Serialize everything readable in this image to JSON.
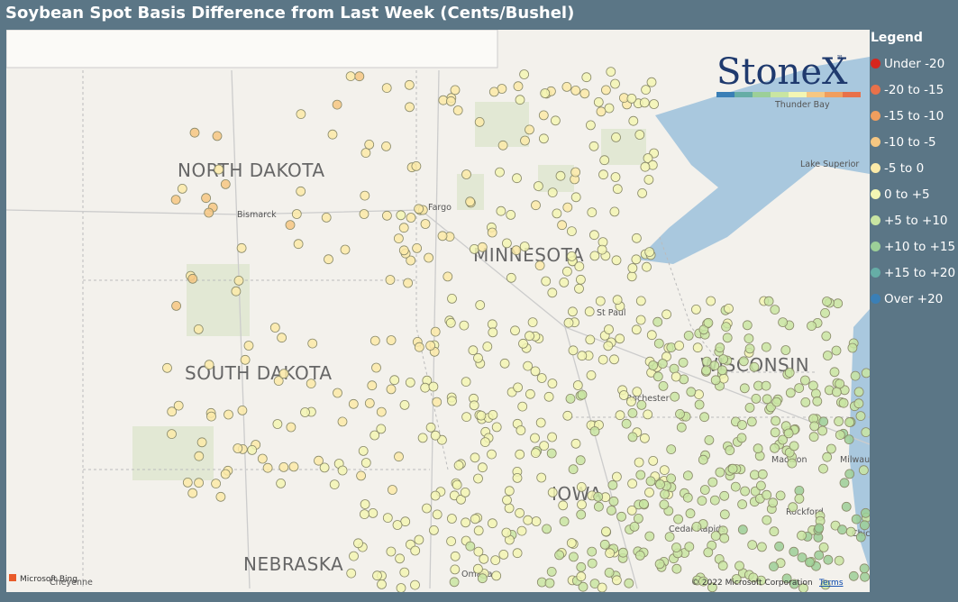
{
  "header": {
    "title": "Soybean Spot Basis Difference from Last Week (Cents/Bushel)"
  },
  "legend": {
    "title": "Legend",
    "items": [
      {
        "label": "Under -20",
        "color": "#d7261e"
      },
      {
        "label": "-20 to -15",
        "color": "#e8714a"
      },
      {
        "label": "-15 to -10",
        "color": "#f09e5e"
      },
      {
        "label": "-10 to -5",
        "color": "#f6c782"
      },
      {
        "label": "-5 to 0",
        "color": "#fbeaa8"
      },
      {
        "label": "0 to +5",
        "color": "#f3f6b4"
      },
      {
        "label": "+5 to +10",
        "color": "#c9e5a2"
      },
      {
        "label": "+10 to +15",
        "color": "#9ccf98"
      },
      {
        "label": "+15 to +20",
        "color": "#66ada6"
      },
      {
        "label": "Over +20",
        "color": "#3a7fb6"
      }
    ]
  },
  "logo": {
    "text": "StoneX",
    "tm": "™"
  },
  "map": {
    "states": [
      "NORTH DAKOTA",
      "MINNESOTA",
      "SOUTH DAKOTA",
      "WISCONSIN",
      "NEBRASKA",
      "IOWA"
    ],
    "cities": [
      "Bismarck",
      "Fargo",
      "St Paul",
      "Rochester",
      "Madison",
      "Thunder Bay",
      "Lake Superior",
      "Cedar Rapids",
      "Omaha",
      "Rockford",
      "Milwaukee",
      "Chicago",
      "Cheyenne"
    ],
    "attribution": {
      "provider": "Microsoft Bing",
      "copyright": "© 2022 Microsoft Corporation",
      "terms": "Terms"
    }
  }
}
